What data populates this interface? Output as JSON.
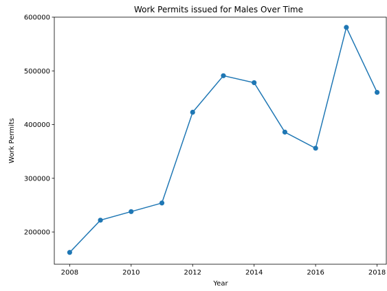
{
  "chart_data": {
    "type": "line",
    "title": "Work Permits issued for Males Over Time",
    "xlabel": "Year",
    "ylabel": "Work Permits",
    "xlim": [
      2007.5,
      2018.3
    ],
    "ylim": [
      140000,
      600000
    ],
    "xticks": [
      2008,
      2010,
      2012,
      2014,
      2016,
      2018
    ],
    "yticks": [
      200000,
      300000,
      400000,
      500000,
      600000
    ],
    "grid": false,
    "series": [
      {
        "color": "#1f77b4",
        "marker": "circle",
        "x": [
          2008,
          2009,
          2010,
          2011,
          2012,
          2013,
          2014,
          2015,
          2016,
          2017,
          2018
        ],
        "y": [
          162000,
          222000,
          238000,
          254000,
          423000,
          491000,
          478000,
          386000,
          356000,
          581000,
          460000
        ]
      }
    ]
  }
}
